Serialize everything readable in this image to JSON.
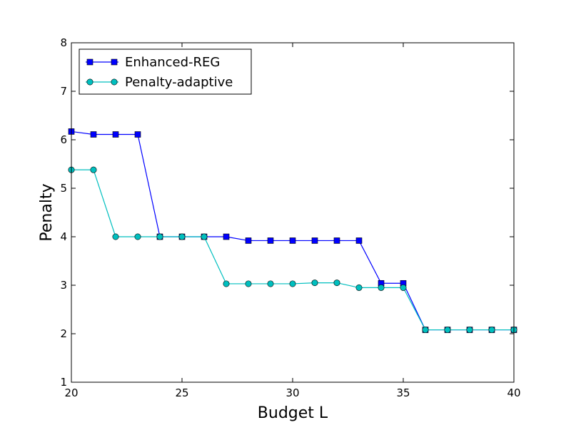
{
  "chart_data": {
    "type": "line",
    "title": "",
    "xlabel": "Budget L",
    "ylabel": "Penalty",
    "xlim": [
      20,
      40
    ],
    "ylim": [
      1,
      8
    ],
    "xticks": [
      "20",
      "25",
      "30",
      "35",
      "40"
    ],
    "yticks": [
      "1",
      "2",
      "3",
      "4",
      "5",
      "6",
      "7",
      "8"
    ],
    "grid": false,
    "legend_position": "top-left",
    "x": [
      20,
      21,
      22,
      23,
      24,
      25,
      26,
      27,
      28,
      29,
      30,
      31,
      32,
      33,
      34,
      35,
      36,
      37,
      38,
      39,
      40
    ],
    "series": [
      {
        "name": "Enhanced-REG",
        "color": "#0000ff",
        "marker": "square",
        "values": [
          6.17,
          6.11,
          6.11,
          6.11,
          4.0,
          4.0,
          4.0,
          4.0,
          3.92,
          3.92,
          3.92,
          3.92,
          3.92,
          3.92,
          3.04,
          3.04,
          2.08,
          2.08,
          2.08,
          2.08,
          2.08
        ]
      },
      {
        "name": "Penalty-adaptive",
        "color": "#00bfbf",
        "marker": "circle",
        "values": [
          5.38,
          5.38,
          4.0,
          4.0,
          4.0,
          4.0,
          4.0,
          3.03,
          3.03,
          3.03,
          3.03,
          3.05,
          3.05,
          2.95,
          2.95,
          2.95,
          2.08,
          2.08,
          2.08,
          2.08,
          2.08
        ]
      }
    ]
  }
}
